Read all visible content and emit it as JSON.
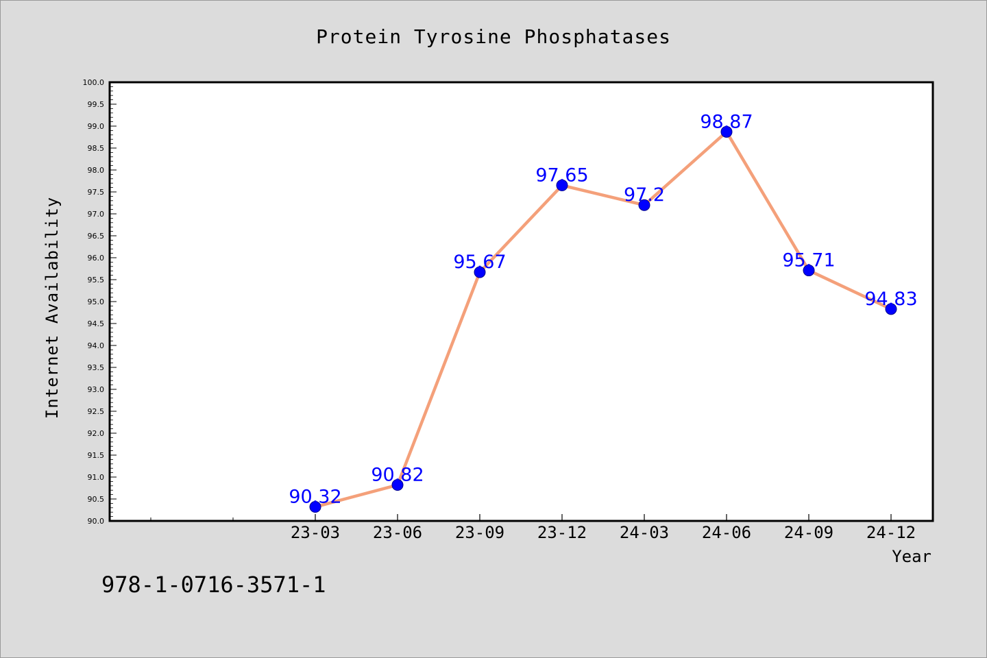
{
  "chart_data": {
    "type": "line",
    "title": "Protein Tyrosine Phosphatases",
    "xlabel": "Year",
    "ylabel": "Internet Availability",
    "categories": [
      "23-03",
      "23-06",
      "23-09",
      "23-12",
      "24-03",
      "24-06",
      "24-09",
      "24-12"
    ],
    "series": [
      {
        "values": [
          90.32,
          90.82,
          95.67,
          97.65,
          97.2,
          98.87,
          95.71,
          94.83
        ],
        "data_labels": [
          "90.32",
          "90.82",
          "95.67",
          "97.65",
          "97.2",
          "98.87",
          "95.71",
          "94.83"
        ],
        "line_color": "#f4a07a",
        "marker_color": "#0000ff",
        "label_color": "#0000ff"
      }
    ],
    "ylim": [
      90.0,
      100.0
    ],
    "yticks": [
      "90.0",
      "90.5",
      "91.0",
      "91.5",
      "92.0",
      "92.5",
      "93.0",
      "93.5",
      "94.0",
      "94.5",
      "95.0",
      "95.5",
      "96.0",
      "96.5",
      "97.0",
      "97.5",
      "98.0",
      "98.5",
      "99.0",
      "99.5",
      "100.0"
    ],
    "grid": false,
    "legend": "none"
  },
  "footer": {
    "isbn": "978-1-0716-3571-1"
  },
  "colors": {
    "background": "#dcdcdc",
    "plot_background": "#ffffff",
    "axis": "#000000"
  }
}
